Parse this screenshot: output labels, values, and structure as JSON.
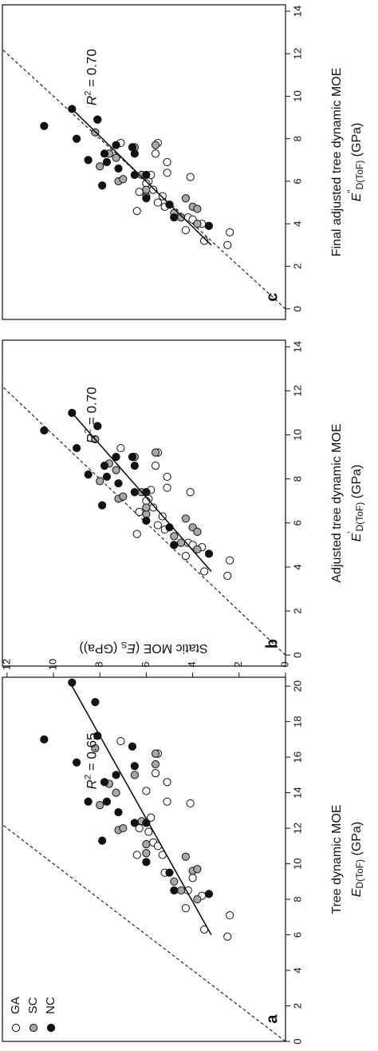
{
  "figure": {
    "ylabel_prefix": "Static MOE (",
    "ylabel_symbol": "E",
    "ylabel_sub": "S",
    "ylabel_suffix": " (GPa))",
    "legend": [
      {
        "label": "GA",
        "fill": "#ffffff"
      },
      {
        "label": "SC",
        "fill": "#a8a8a8"
      },
      {
        "label": "NC",
        "fill": "#111111"
      }
    ]
  },
  "chart_data": [
    {
      "type": "scatter",
      "panel": "a",
      "xlabel_line1": "Tree dynamic MOE",
      "xlabel_symbol": "E",
      "xlabel_prime": "",
      "xlabel_sub": "D(ToF)",
      "xlabel_unit": " (GPa)",
      "xlim": [
        0,
        20.5
      ],
      "ylim": [
        0,
        12.2
      ],
      "xticks": [
        0,
        2,
        4,
        6,
        8,
        10,
        12,
        14,
        16,
        18,
        20
      ],
      "yticks": [
        0,
        2,
        4,
        6,
        8,
        10,
        12
      ],
      "r2_label": "= 0.65",
      "fit": [
        [
          6.0,
          3.2
        ],
        [
          20.0,
          9.2
        ]
      ],
      "one_to_one": true,
      "series": [
        {
          "name": "GA",
          "points": [
            [
              5.9,
              2.5
            ],
            [
              7.1,
              2.4
            ],
            [
              6.3,
              3.5
            ],
            [
              7.5,
              4.3
            ],
            [
              8.2,
              3.6
            ],
            [
              8.5,
              4.2
            ],
            [
              9.5,
              5.2
            ],
            [
              10.5,
              5.3
            ],
            [
              11.2,
              5.7
            ],
            [
              11.8,
              5.9
            ],
            [
              12.6,
              5.8
            ],
            [
              13.4,
              4.1
            ],
            [
              13.5,
              5.1
            ],
            [
              14.6,
              5.1
            ],
            [
              15.1,
              5.6
            ],
            [
              16.2,
              5.5
            ],
            [
              16.9,
              7.1
            ],
            [
              14.1,
              6.0
            ],
            [
              12.0,
              6.3
            ],
            [
              11.0,
              5.5
            ],
            [
              10.5,
              6.4
            ],
            [
              9.2,
              4.0
            ]
          ]
        },
        {
          "name": "SC",
          "points": [
            [
              8.5,
              4.5
            ],
            [
              9.0,
              4.8
            ],
            [
              9.6,
              4.0
            ],
            [
              9.7,
              3.8
            ],
            [
              10.4,
              4.3
            ],
            [
              10.6,
              6.0
            ],
            [
              11.1,
              6.0
            ],
            [
              11.9,
              7.2
            ],
            [
              12.0,
              7.0
            ],
            [
              12.4,
              6.2
            ],
            [
              13.3,
              8.0
            ],
            [
              14.0,
              7.3
            ],
            [
              14.5,
              7.6
            ],
            [
              15.0,
              6.5
            ],
            [
              15.6,
              5.6
            ],
            [
              16.2,
              5.6
            ],
            [
              16.5,
              8.2
            ],
            [
              8.0,
              3.8
            ]
          ]
        },
        {
          "name": "NC",
          "points": [
            [
              8.3,
              3.3
            ],
            [
              8.5,
              4.8
            ],
            [
              9.5,
              5.0
            ],
            [
              10.1,
              6.0
            ],
            [
              11.3,
              7.9
            ],
            [
              12.3,
              6.0
            ],
            [
              12.3,
              6.5
            ],
            [
              12.9,
              7.2
            ],
            [
              13.5,
              7.7
            ],
            [
              13.5,
              8.5
            ],
            [
              14.6,
              7.8
            ],
            [
              15.0,
              7.3
            ],
            [
              15.5,
              6.5
            ],
            [
              15.7,
              9.0
            ],
            [
              16.6,
              6.6
            ],
            [
              17.2,
              8.1
            ],
            [
              19.1,
              8.2
            ],
            [
              20.2,
              9.2
            ],
            [
              17.0,
              10.4
            ]
          ]
        }
      ]
    },
    {
      "type": "scatter",
      "panel": "b",
      "xlabel_line1": "Adjusted tree dynamic MOE",
      "xlabel_symbol": "E",
      "xlabel_prime": "′",
      "xlabel_sub": "D(ToF)",
      "xlabel_unit": " (GPa)",
      "xlim": [
        -0.5,
        14.3
      ],
      "ylim": [
        0,
        12.2
      ],
      "xticks": [
        0,
        2,
        4,
        6,
        8,
        10,
        12,
        14
      ],
      "yticks": [],
      "r2_label": "= 0.70",
      "fit": [
        [
          3.8,
          3.2
        ],
        [
          11.0,
          9.2
        ]
      ],
      "one_to_one": true,
      "series": [
        {
          "name": "GA",
          "points": [
            [
              3.6,
              2.5
            ],
            [
              4.3,
              2.4
            ],
            [
              3.8,
              3.5
            ],
            [
              4.5,
              4.3
            ],
            [
              4.9,
              3.6
            ],
            [
              5.1,
              4.2
            ],
            [
              5.7,
              5.2
            ],
            [
              6.3,
              5.3
            ],
            [
              6.7,
              5.7
            ],
            [
              7.1,
              5.9
            ],
            [
              7.5,
              5.8
            ],
            [
              7.4,
              4.1
            ],
            [
              7.6,
              5.1
            ],
            [
              8.1,
              5.1
            ],
            [
              8.6,
              5.6
            ],
            [
              9.2,
              5.5
            ],
            [
              9.4,
              7.1
            ],
            [
              7.0,
              6.0
            ],
            [
              6.5,
              6.3
            ],
            [
              5.9,
              5.5
            ],
            [
              5.5,
              6.4
            ],
            [
              5.0,
              4.0
            ]
          ]
        },
        {
          "name": "SC",
          "points": [
            [
              5.1,
              4.5
            ],
            [
              5.4,
              4.8
            ],
            [
              5.8,
              4.0
            ],
            [
              5.6,
              3.8
            ],
            [
              6.2,
              4.3
            ],
            [
              6.4,
              6.0
            ],
            [
              6.7,
              6.0
            ],
            [
              7.1,
              7.2
            ],
            [
              7.2,
              7.0
            ],
            [
              7.4,
              6.2
            ],
            [
              7.9,
              8.0
            ],
            [
              8.4,
              7.3
            ],
            [
              8.7,
              7.6
            ],
            [
              9.0,
              6.5
            ],
            [
              9.2,
              5.6
            ],
            [
              9.8,
              8.2
            ],
            [
              4.8,
              3.8
            ]
          ]
        },
        {
          "name": "NC",
          "points": [
            [
              4.6,
              3.3
            ],
            [
              5.0,
              4.8
            ],
            [
              5.8,
              5.0
            ],
            [
              6.1,
              6.0
            ],
            [
              6.8,
              7.9
            ],
            [
              7.4,
              6.0
            ],
            [
              7.4,
              6.5
            ],
            [
              7.8,
              7.2
            ],
            [
              8.1,
              7.7
            ],
            [
              8.2,
              8.5
            ],
            [
              8.6,
              7.8
            ],
            [
              9.0,
              7.3
            ],
            [
              8.6,
              6.5
            ],
            [
              9.4,
              9.0
            ],
            [
              9.0,
              6.6
            ],
            [
              10.4,
              8.1
            ],
            [
              10.4,
              8.1
            ],
            [
              11.0,
              9.2
            ],
            [
              10.2,
              10.4
            ]
          ]
        }
      ]
    },
    {
      "type": "scatter",
      "panel": "c",
      "xlabel_line1": "Final adjusted tree dynamic MOE",
      "xlabel_symbol": "E",
      "xlabel_prime": "″",
      "xlabel_sub": "D(ToF)",
      "xlabel_unit": " (GPa)",
      "xlim": [
        -0.5,
        14.3
      ],
      "ylim": [
        0,
        12.2
      ],
      "xticks": [
        0,
        2,
        4,
        6,
        8,
        10,
        12,
        14
      ],
      "yticks": [],
      "r2_label": "= 0.70",
      "fit": [
        [
          3.0,
          3.2
        ],
        [
          9.4,
          9.2
        ]
      ],
      "one_to_one": true,
      "series": [
        {
          "name": "GA",
          "points": [
            [
              3.0,
              2.5
            ],
            [
              3.6,
              2.4
            ],
            [
              3.2,
              3.5
            ],
            [
              3.7,
              4.3
            ],
            [
              4.0,
              3.6
            ],
            [
              4.3,
              4.2
            ],
            [
              4.8,
              5.2
            ],
            [
              5.3,
              5.3
            ],
            [
              5.6,
              5.7
            ],
            [
              6.0,
              5.9
            ],
            [
              6.3,
              5.8
            ],
            [
              6.2,
              4.1
            ],
            [
              6.4,
              5.1
            ],
            [
              6.9,
              5.1
            ],
            [
              7.3,
              5.6
            ],
            [
              7.8,
              5.5
            ],
            [
              7.8,
              7.1
            ],
            [
              5.9,
              6.0
            ],
            [
              5.5,
              6.3
            ],
            [
              5.0,
              5.5
            ],
            [
              4.6,
              6.4
            ],
            [
              4.2,
              4.0
            ]
          ]
        },
        {
          "name": "SC",
          "points": [
            [
              4.3,
              4.5
            ],
            [
              4.5,
              4.8
            ],
            [
              4.8,
              4.0
            ],
            [
              4.7,
              3.8
            ],
            [
              5.2,
              4.3
            ],
            [
              5.3,
              6.0
            ],
            [
              5.6,
              6.0
            ],
            [
              6.0,
              7.2
            ],
            [
              6.1,
              7.0
            ],
            [
              6.3,
              6.2
            ],
            [
              6.7,
              8.0
            ],
            [
              7.1,
              7.3
            ],
            [
              7.3,
              7.6
            ],
            [
              7.6,
              6.5
            ],
            [
              7.7,
              5.6
            ],
            [
              8.3,
              8.2
            ],
            [
              4.0,
              3.8
            ]
          ]
        },
        {
          "name": "NC",
          "points": [
            [
              3.9,
              3.3
            ],
            [
              4.3,
              4.8
            ],
            [
              4.9,
              5.0
            ],
            [
              5.2,
              6.0
            ],
            [
              5.8,
              7.9
            ],
            [
              6.3,
              6.0
            ],
            [
              6.3,
              6.5
            ],
            [
              6.6,
              7.2
            ],
            [
              6.9,
              7.7
            ],
            [
              7.0,
              8.5
            ],
            [
              7.3,
              7.8
            ],
            [
              7.7,
              7.3
            ],
            [
              7.3,
              6.5
            ],
            [
              8.0,
              9.0
            ],
            [
              7.6,
              6.6
            ],
            [
              8.9,
              8.1
            ],
            [
              8.9,
              8.1
            ],
            [
              9.4,
              9.2
            ],
            [
              8.6,
              10.4
            ]
          ]
        }
      ]
    }
  ]
}
